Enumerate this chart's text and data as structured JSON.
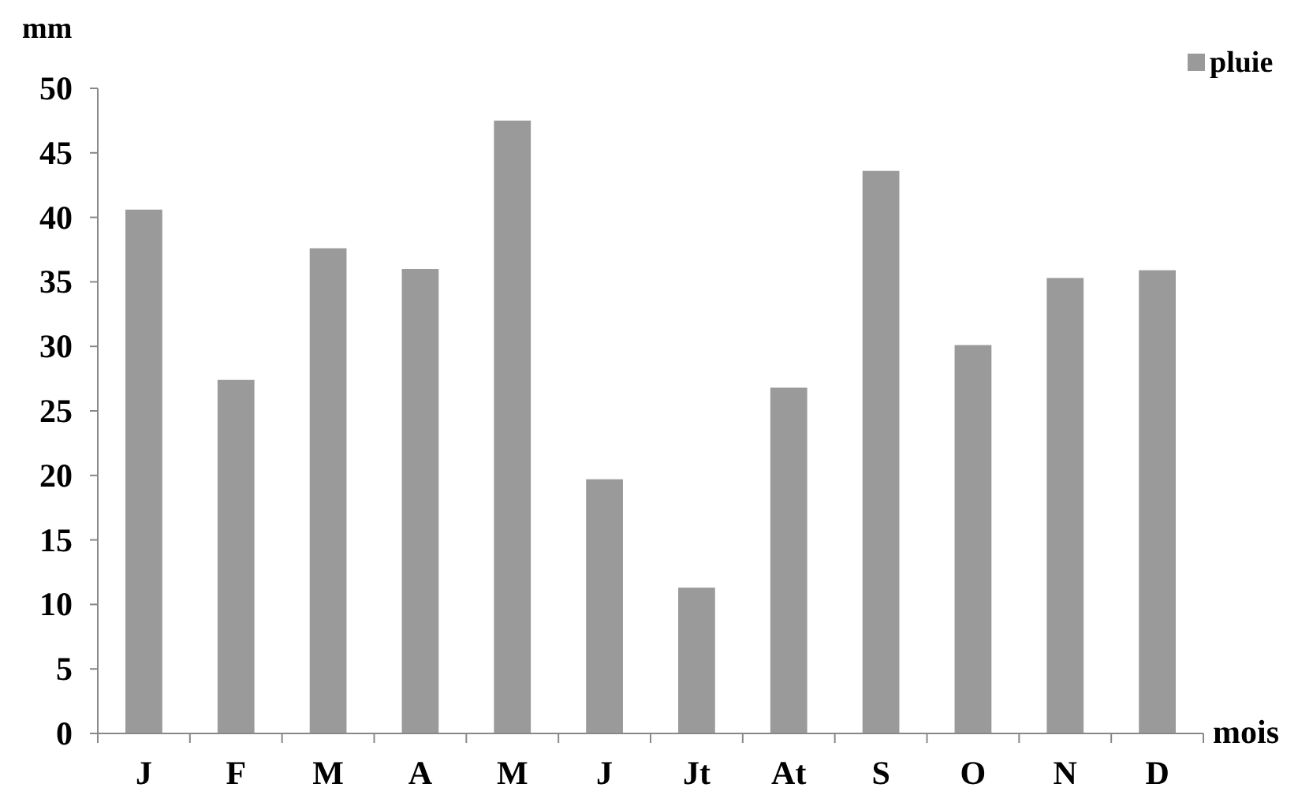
{
  "chart_data": {
    "type": "bar",
    "ylabel": "mm",
    "xlabel": "mois",
    "categories": [
      "J",
      "F",
      "M",
      "A",
      "M",
      "J",
      "Jt",
      "At",
      "S",
      "O",
      "N",
      "D"
    ],
    "series": [
      {
        "name": "pluie",
        "color": "#9a9a9a",
        "values": [
          40.6,
          27.4,
          37.6,
          36.0,
          47.5,
          19.7,
          11.3,
          26.8,
          43.6,
          30.1,
          35.3,
          35.9
        ]
      }
    ],
    "ylim": [
      0,
      50
    ],
    "yticks": [
      0,
      5,
      10,
      15,
      20,
      25,
      30,
      35,
      40,
      45,
      50
    ],
    "grid": false,
    "legend": "top right"
  }
}
